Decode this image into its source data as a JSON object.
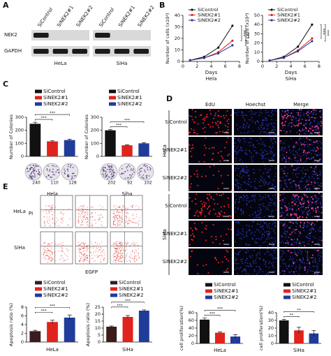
{
  "panel_labels": [
    "A",
    "B",
    "C",
    "D",
    "E"
  ],
  "blot": {
    "columns": [
      "SiControl",
      "SiNEK2#1",
      "SiNEK2#2"
    ],
    "rows": [
      "NEK2",
      "GAPDH"
    ],
    "cell_lines": [
      "HeLa",
      "SiHa"
    ]
  },
  "edu": {
    "columns": [
      "EdU",
      "Hoechst",
      "Merge"
    ],
    "rows": [
      "SiControl",
      "SiNEK2#1",
      "SiNEK2#2"
    ],
    "cell_lines": [
      "HeLa",
      "SiHa"
    ]
  },
  "flow": {
    "rows": [
      "HeLa",
      "SiHa"
    ],
    "y_label": "PI",
    "x_label": "EGFP"
  },
  "colonies": [
    {
      "counts": [
        240,
        110,
        128
      ]
    },
    {
      "counts": [
        202,
        92,
        102
      ]
    }
  ],
  "chart_data": [
    {
      "type": "line",
      "title": "Hela",
      "x_label": "Days",
      "y_label": "Number of cells (x10⁴)",
      "x": [
        1,
        3,
        5,
        7
      ],
      "series": [
        {
          "name": "SiControl",
          "color": "#111111",
          "values": [
            1,
            4,
            12,
            31
          ]
        },
        {
          "name": "SiNEK2#1",
          "color": "#e0231c",
          "values": [
            1,
            3,
            8,
            18
          ]
        },
        {
          "name": "SiNEK2#2",
          "color": "#1f3c9a",
          "values": [
            1,
            3,
            7,
            14
          ]
        }
      ],
      "xlim": [
        0,
        8
      ],
      "xticks": [
        0,
        2,
        4,
        6,
        8
      ],
      "ylim": [
        0,
        40
      ],
      "yticks": [
        0,
        10,
        20,
        30,
        40
      ],
      "annotations": [
        "***",
        "***"
      ]
    },
    {
      "type": "line",
      "title": "SiHa",
      "x_label": "Days",
      "y_label": "Number of cells (x10⁴)",
      "x": [
        1,
        3,
        5,
        7
      ],
      "series": [
        {
          "name": "SiControl",
          "color": "#111111",
          "values": [
            1,
            5,
            16,
            40
          ]
        },
        {
          "name": "SiNEK2#1",
          "color": "#e0231c",
          "values": [
            1,
            4,
            12,
            25
          ]
        },
        {
          "name": "SiNEK2#2",
          "color": "#1f3c9a",
          "values": [
            1,
            4,
            11,
            22
          ]
        }
      ],
      "xlim": [
        0,
        8
      ],
      "xticks": [
        0,
        2,
        4,
        6,
        8
      ],
      "ylim": [
        0,
        50
      ],
      "yticks": [
        0,
        10,
        20,
        30,
        40,
        50
      ],
      "annotations": [
        "***",
        "***"
      ]
    },
    {
      "type": "bar",
      "x_label": "Hela",
      "y_label": "Number of Colonies",
      "categories": [
        "SiControl",
        "SiNEK2#1",
        "SiNEK2#2"
      ],
      "colors": [
        "#111111",
        "#e0231c",
        "#1f3c9a"
      ],
      "values": [
        250,
        115,
        125
      ],
      "errors": [
        12,
        6,
        7
      ],
      "ylim": [
        0,
        300
      ],
      "yticks": [
        0,
        100,
        200,
        300
      ],
      "annotations": [
        "***",
        "***"
      ]
    },
    {
      "type": "bar",
      "x_label": "Siha",
      "y_label": "Number of Colonies",
      "categories": [
        "SiControl",
        "SiNEK2#1",
        "SiNEK2#2"
      ],
      "colors": [
        "#111111",
        "#e0231c",
        "#1f3c9a"
      ],
      "values": [
        200,
        85,
        100
      ],
      "errors": [
        6,
        4,
        5
      ],
      "ylim": [
        0,
        300
      ],
      "yticks": [
        0,
        100,
        200,
        300
      ],
      "annotations": [
        "***",
        "***"
      ]
    },
    {
      "type": "bar",
      "x_label": "HeLa",
      "y_label": "cell proliferation(%)",
      "categories": [
        "SiControl",
        "SiNEK2#1",
        "SiNEK2#2"
      ],
      "colors": [
        "#111111",
        "#e0231c",
        "#1f3c9a"
      ],
      "values": [
        62,
        28,
        18
      ],
      "errors": [
        4,
        2,
        5
      ],
      "ylim": [
        0,
        80
      ],
      "yticks": [
        0,
        20,
        40,
        60,
        80
      ],
      "annotations": [
        "***",
        "***"
      ]
    },
    {
      "type": "bar",
      "x_label": "SiHa",
      "y_label": "cell proliferation(%)",
      "categories": [
        "SiControl",
        "SiNEK2#1",
        "SiNEK2#2"
      ],
      "colors": [
        "#111111",
        "#e0231c",
        "#1f3c9a"
      ],
      "values": [
        30,
        17,
        13
      ],
      "errors": [
        1.5,
        4,
        4
      ],
      "ylim": [
        0,
        40
      ],
      "yticks": [
        0,
        10,
        20,
        30,
        40
      ],
      "annotations": [
        "**",
        "**"
      ]
    },
    {
      "type": "bar",
      "x_label": "HeLa",
      "y_label": "Apoptosis ratio (%)",
      "categories": [
        "SiControl",
        "SiNEK2#1",
        "SiNEK2#2"
      ],
      "colors": [
        "#3a1c1c",
        "#e0231c",
        "#1f3c9a"
      ],
      "values": [
        2.5,
        4.6,
        5.6
      ],
      "errors": [
        0.2,
        0.4,
        0.6
      ],
      "ylim": [
        0,
        8
      ],
      "yticks": [
        0,
        2,
        4,
        6,
        8
      ],
      "annotations": [
        "***",
        "***"
      ]
    },
    {
      "type": "bar",
      "x_label": "SiHa",
      "y_label": "Apoptosis ratio (%)",
      "categories": [
        "SiControl",
        "SiNEK2#1",
        "SiNEK2#2"
      ],
      "colors": [
        "#3a1c1c",
        "#e0231c",
        "#1f3c9a"
      ],
      "values": [
        11,
        18,
        22.5
      ],
      "errors": [
        0.5,
        1,
        0.6
      ],
      "ylim": [
        0,
        25
      ],
      "yticks": [
        0,
        5,
        10,
        15,
        20,
        25
      ],
      "annotations": [
        "***",
        "***"
      ]
    }
  ]
}
